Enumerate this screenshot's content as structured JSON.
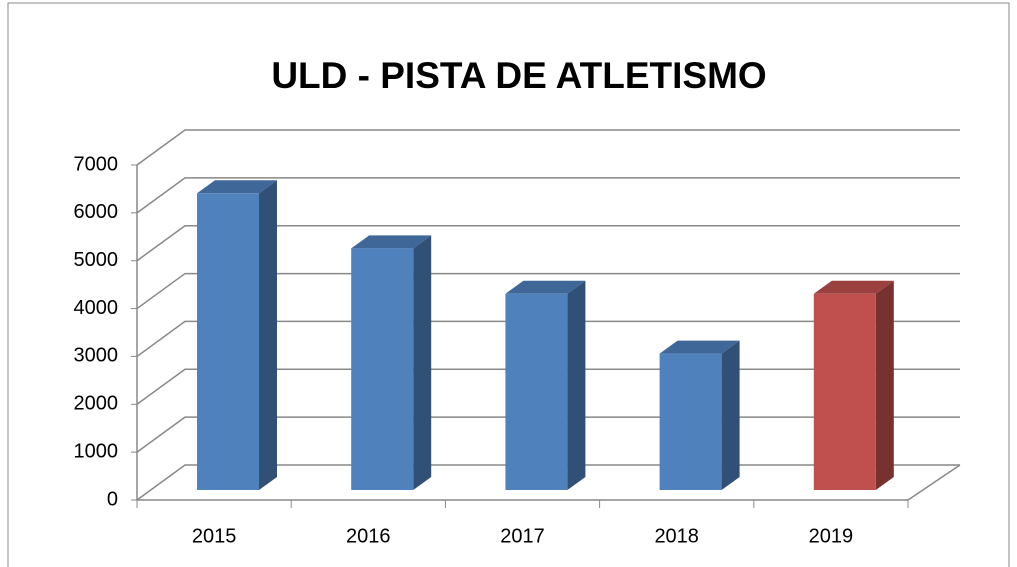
{
  "chart_data": {
    "type": "bar3d",
    "title": "ULD - PISTA DE ATLETISMO",
    "categories": [
      "2015",
      "2016",
      "2017",
      "2018",
      "2019"
    ],
    "values": [
      6200,
      5050,
      4100,
      2850,
      4100
    ],
    "colors": [
      "#4f81bd",
      "#4f81bd",
      "#4f81bd",
      "#4f81bd",
      "#c0504d"
    ],
    "ylim": [
      0,
      7000
    ],
    "yticks": [
      0,
      1000,
      2000,
      3000,
      4000,
      5000,
      6000,
      7000
    ],
    "grid": true
  }
}
